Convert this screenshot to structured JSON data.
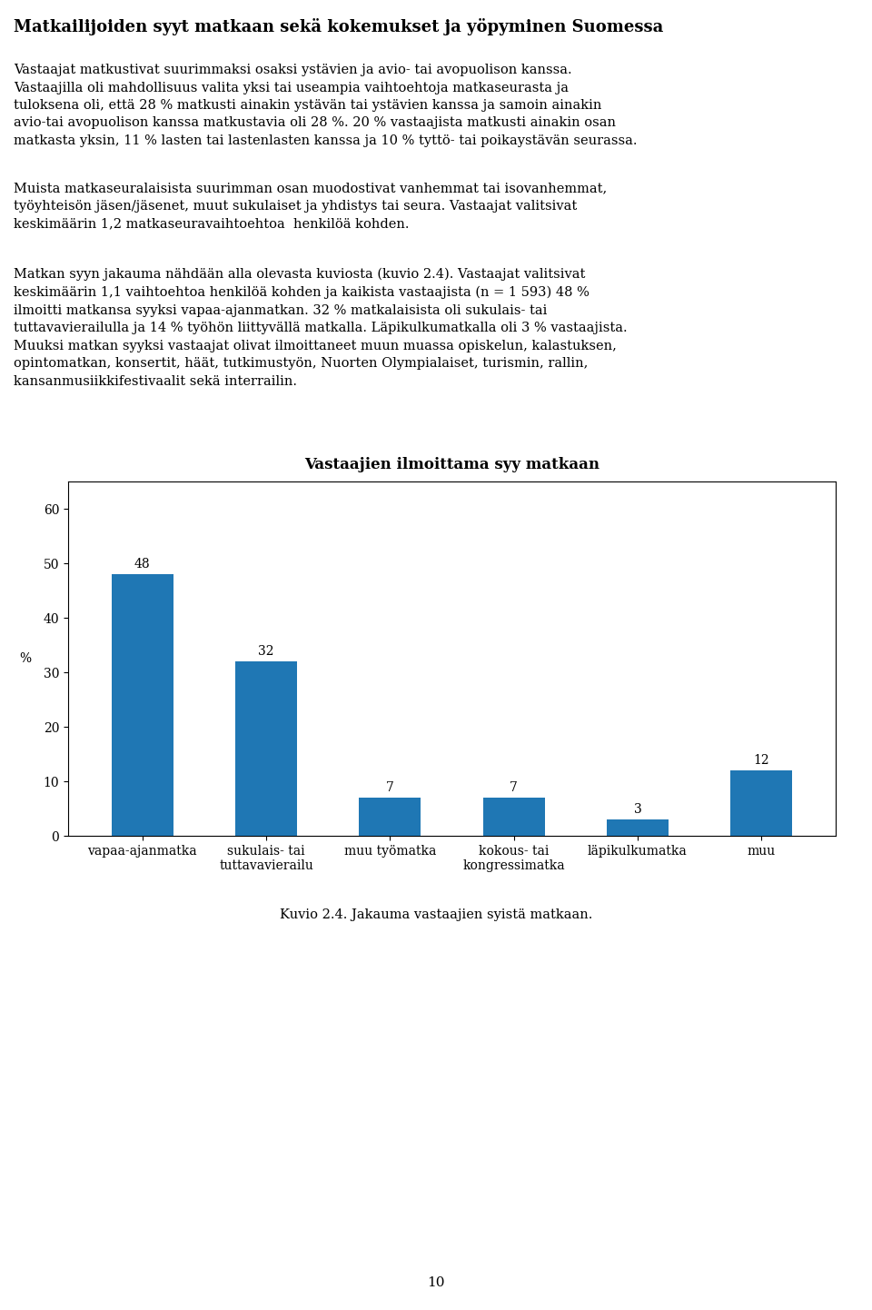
{
  "chart_data": {
    "type": "bar",
    "title": "Vastaajien ilmoittama syy matkaan",
    "ylabel": "%",
    "categories": [
      "vapaa-ajanmatka",
      "sukulais- tai\ntuttavavierailu",
      "muu työmatka",
      "kokous- tai\nkongressimatka",
      "läpikulkumatka",
      "muu"
    ],
    "values": [
      48,
      32,
      7,
      7,
      3,
      12
    ],
    "ylim": [
      0,
      65
    ],
    "yticks": [
      0,
      10,
      20,
      30,
      40,
      50,
      60
    ],
    "grid": false,
    "data_labels": true,
    "annotations": [
      "Matkailijoiden syyt matkaan sekä kokemukset ja yöpyminen Suomessa",
      "Vastaajat matkustivat suurimmaksi osaksi ystävien ja avio- tai avopuolison kanssa.\nVastaajilla oli mahdollisuus valita yksi tai useampia vaihtoehtoja matkaseurasta ja\ntuloksena oli, että 28 % matkusti ainakin ystävän tai ystävien kanssa ja samoin ainakin\navio-tai avopuolison kanssa matkustavia oli 28 %. 20 % vastaajista matkusti ainakin osan\nmatkasta yksin, 11 % lasten tai lastenlasten kanssa ja 10 % tyttö- tai poikaystävän seurassa.",
      "Muista matkaseuralaisista suurimman osan muodostivat vanhemmat tai isovanhemmat,\ntyöyhteisön jäsen/jäsenet, muut sukulaiset ja yhdistys tai seura. Vastaajat valitsivat\nkeskimäärin 1,2 matkaseuravaihtoehtoa  henkilöä kohden.",
      "Matkan syyn jakauma nähdään alla olevasta kuviosta (kuvio 2.4). Vastaajat valitsivat\nkeskimäärin 1,1 vaihtoehtoa henkilöä kohden ja kaikista vastaajista (n = 1 593) 48 %\nilmoitti matkansa syyksi vapaa-ajanmatkan. 32 % matkalaisista oli sukulais- tai\ntuttavavierailulla ja 14 % työhön liittyvällä matkalla. Läpikulkumatkalla oli 3 % vastaajista.\nMuuksi matkan syyksi vastaajat olivat ilmoittaneet muun muassa opiskelun, kalastuksen,\nopintomatkan, konsertit, häät, tutkimustyön, Nuorten Olympialaiset, turismin, rallin,\nkansanmusiikkifestivaalit sekä interrailin.",
      "Kuvio 2.4. Jakauma vastaajien syistä matkaan.",
      "10"
    ]
  }
}
